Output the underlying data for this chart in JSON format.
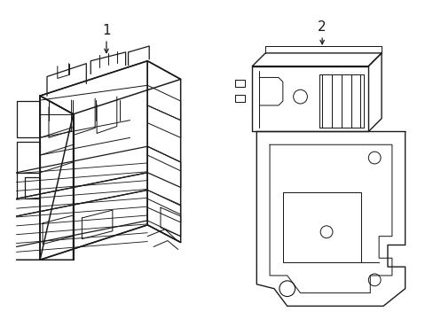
{
  "background_color": "#ffffff",
  "line_color": "#1a1a1a",
  "line_width": 0.9,
  "label1": "1",
  "label2": "2",
  "figsize": [
    4.89,
    3.6
  ],
  "dpi": 100
}
